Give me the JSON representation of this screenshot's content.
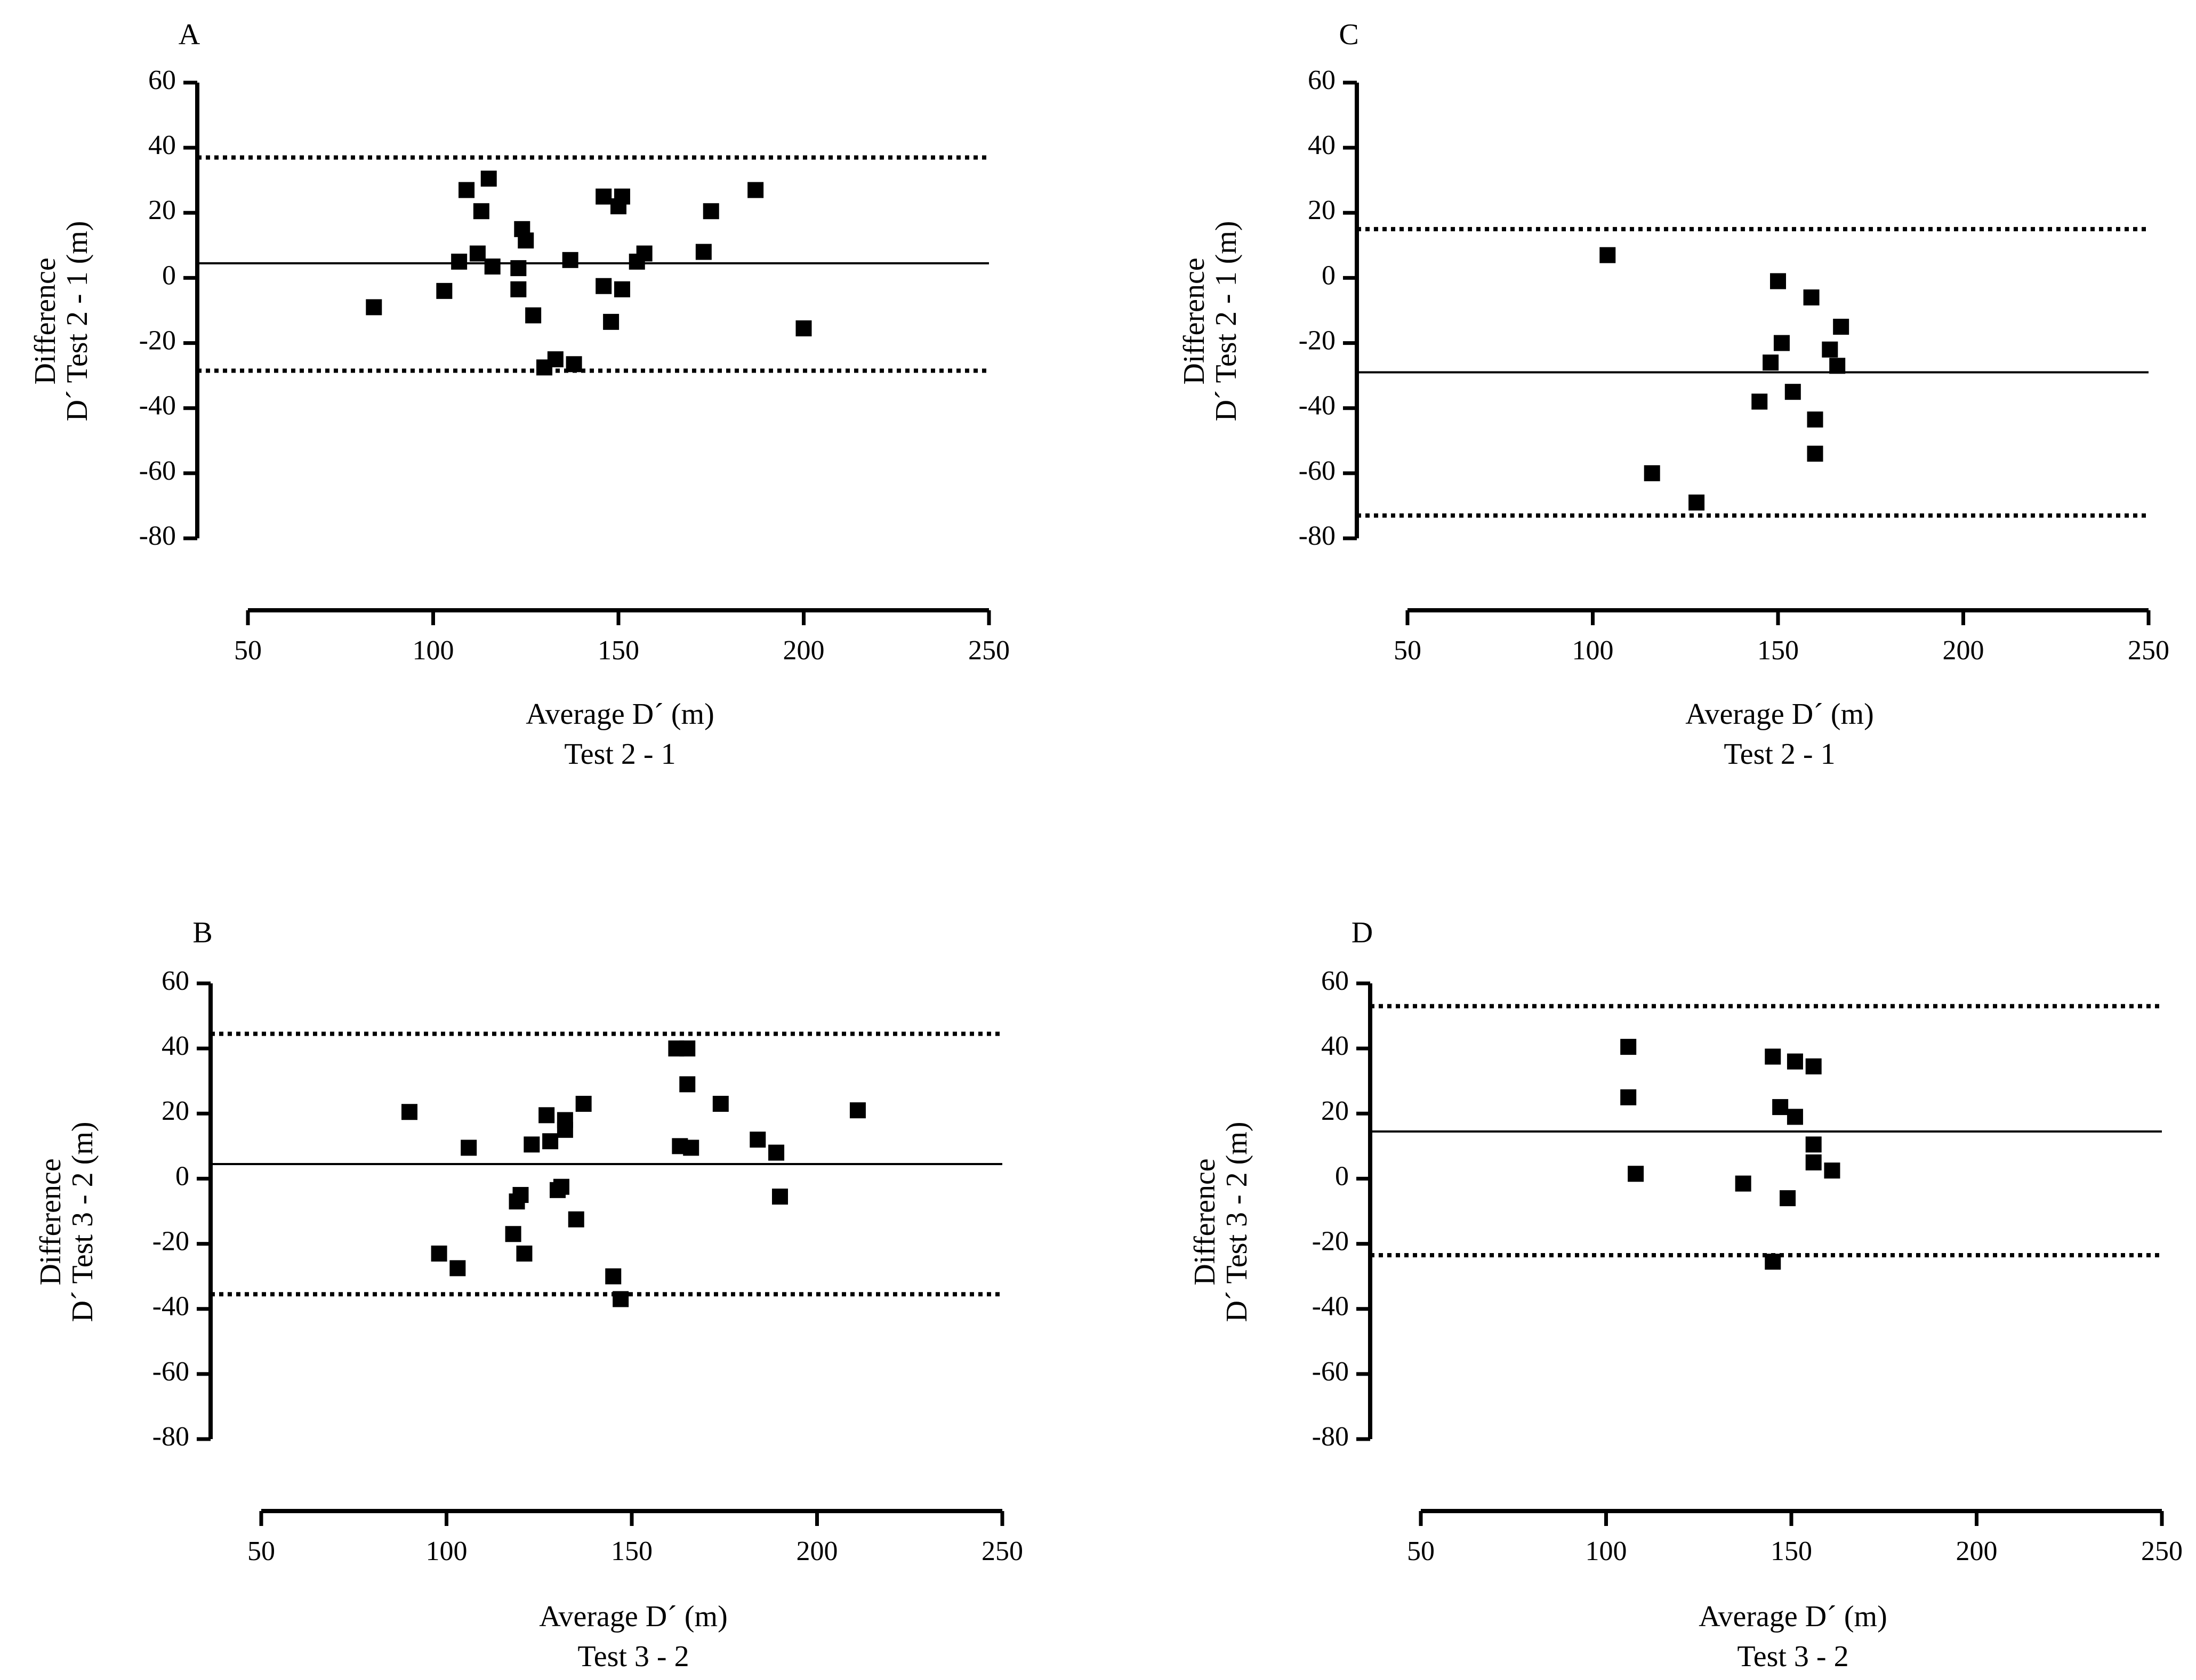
{
  "chart_data": [
    {
      "panel": "A",
      "type": "scatter",
      "title": "",
      "xlabel": [
        "Average D´ (m)",
        "Test 2 - 1"
      ],
      "ylabel": [
        "Difference",
        "D´ Test 2 - 1 (m)"
      ],
      "xlim": [
        50,
        250
      ],
      "ylim": [
        -80,
        60
      ],
      "xticks": [
        "50",
        "100",
        "150",
        "200",
        "250"
      ],
      "yticks": [
        "60",
        "40",
        "20",
        "0",
        "-20",
        "-40",
        "-60",
        "-80"
      ],
      "mean_line": 4.5,
      "limits_of_agreement": [
        37,
        -28.5
      ],
      "points": [
        [
          84,
          -9
        ],
        [
          103,
          -4
        ],
        [
          107,
          5
        ],
        [
          109,
          27
        ],
        [
          112,
          7.5
        ],
        [
          113,
          20.5
        ],
        [
          115,
          30.5
        ],
        [
          116,
          3.5
        ],
        [
          123,
          3
        ],
        [
          123,
          -3.5
        ],
        [
          124,
          15
        ],
        [
          125,
          11.5
        ],
        [
          127,
          -11.5
        ],
        [
          130,
          -27.5
        ],
        [
          133,
          -25
        ],
        [
          137,
          5.5
        ],
        [
          138,
          -26.5
        ],
        [
          146,
          25
        ],
        [
          146,
          -2.5
        ],
        [
          148,
          -13.5
        ],
        [
          150,
          22
        ],
        [
          151,
          25
        ],
        [
          151,
          -3.5
        ],
        [
          155,
          5
        ],
        [
          157,
          7.5
        ],
        [
          173,
          8
        ],
        [
          175,
          20.5
        ],
        [
          187,
          27
        ],
        [
          200,
          -15.5
        ]
      ]
    },
    {
      "panel": "B",
      "type": "scatter",
      "title": "",
      "xlabel": [
        "Average D´ (m)",
        "Test 3 - 2"
      ],
      "ylabel": [
        "Difference",
        "D´ Test 3 - 2 (m)"
      ],
      "xlim": [
        50,
        250
      ],
      "ylim": [
        -80,
        60
      ],
      "xticks": [
        "50",
        "100",
        "150",
        "200",
        "250"
      ],
      "yticks": [
        "60",
        "40",
        "20",
        "0",
        "-20",
        "-40",
        "-60",
        "-80"
      ],
      "mean_line": 4.5,
      "limits_of_agreement": [
        44.5,
        -35.5
      ],
      "points": [
        [
          90,
          20.5
        ],
        [
          98,
          -23
        ],
        [
          103,
          -27.5
        ],
        [
          106,
          9.5
        ],
        [
          118,
          -17
        ],
        [
          119,
          -7
        ],
        [
          120,
          -5
        ],
        [
          121,
          -23
        ],
        [
          123,
          10.5
        ],
        [
          127,
          19.5
        ],
        [
          128,
          11.5
        ],
        [
          130,
          -3.5
        ],
        [
          131,
          -2.5
        ],
        [
          132,
          15
        ],
        [
          132,
          18
        ],
        [
          135,
          -12.5
        ],
        [
          137,
          23
        ],
        [
          145,
          -30
        ],
        [
          147,
          -37
        ],
        [
          162,
          40
        ],
        [
          163,
          10
        ],
        [
          165,
          40
        ],
        [
          165,
          29
        ],
        [
          166,
          9.5
        ],
        [
          174,
          23
        ],
        [
          184,
          12
        ],
        [
          189,
          8
        ],
        [
          190,
          -5.5
        ],
        [
          211,
          21
        ]
      ]
    },
    {
      "panel": "C",
      "type": "scatter",
      "title": "",
      "xlabel": [
        "Average D´ (m)",
        "Test 2 - 1"
      ],
      "ylabel": [
        "Difference",
        "D´ Test 2 - 1 (m)"
      ],
      "xlim": [
        50,
        250
      ],
      "ylim": [
        -80,
        60
      ],
      "xticks": [
        "50",
        "100",
        "150",
        "200",
        "250"
      ],
      "yticks": [
        "60",
        "40",
        "20",
        "0",
        "-20",
        "-40",
        "-60",
        "-80"
      ],
      "mean_line": -29,
      "limits_of_agreement": [
        15,
        -73
      ],
      "points": [
        [
          104,
          7
        ],
        [
          116,
          -60
        ],
        [
          128,
          -69
        ],
        [
          145,
          -38
        ],
        [
          148,
          -26
        ],
        [
          150,
          -1
        ],
        [
          151,
          -20
        ],
        [
          154,
          -35
        ],
        [
          159,
          -6
        ],
        [
          160,
          -43.5
        ],
        [
          160,
          -54
        ],
        [
          164,
          -22
        ],
        [
          166,
          -27
        ],
        [
          167,
          -15
        ]
      ]
    },
    {
      "panel": "D",
      "type": "scatter",
      "title": "",
      "xlabel": [
        "Average D´ (m)",
        "Test 3 - 2"
      ],
      "ylabel": [
        "Difference",
        "D´ Test 3 - 2 (m)"
      ],
      "xlim": [
        50,
        250
      ],
      "ylim": [
        -80,
        60
      ],
      "xticks": [
        "50",
        "100",
        "150",
        "200",
        "250"
      ],
      "yticks": [
        "60",
        "40",
        "20",
        "0",
        "-20",
        "-40",
        "-60",
        "-80"
      ],
      "mean_line": 14.5,
      "limits_of_agreement": [
        53,
        -23.5
      ],
      "points": [
        [
          106,
          40.5
        ],
        [
          106,
          25
        ],
        [
          108,
          1.5
        ],
        [
          137,
          -1.5
        ],
        [
          145,
          -25.5
        ],
        [
          145,
          37.5
        ],
        [
          147,
          22
        ],
        [
          149,
          -6
        ],
        [
          151,
          36
        ],
        [
          151,
          19
        ],
        [
          156,
          34.5
        ],
        [
          156,
          10.5
        ],
        [
          156,
          5
        ],
        [
          161,
          2.5
        ]
      ]
    }
  ]
}
